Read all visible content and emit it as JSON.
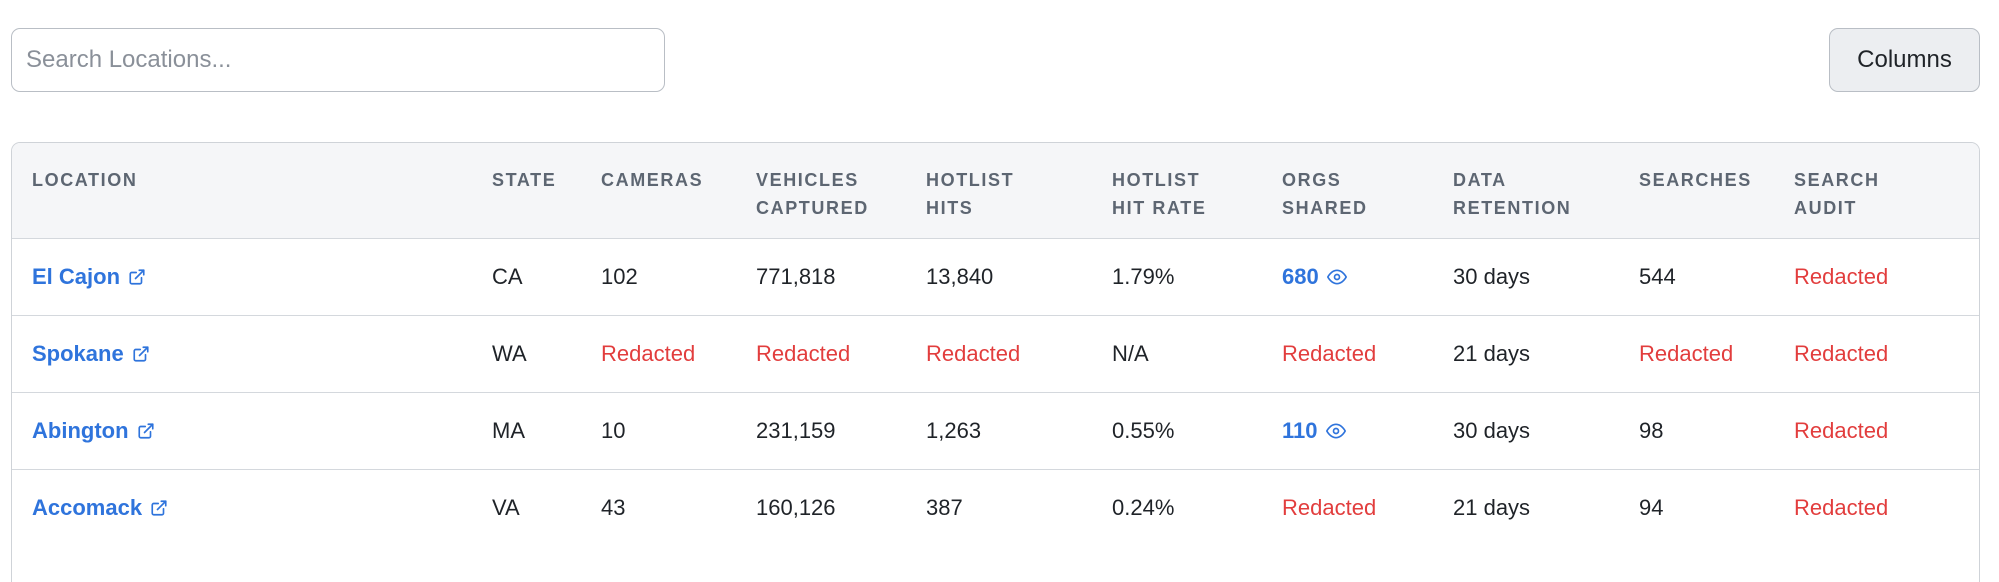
{
  "search": {
    "placeholder": "Search Locations...",
    "value": ""
  },
  "toolbar": {
    "columns_label": "Columns"
  },
  "colors": {
    "link": "#2f74dc",
    "redacted": "#e23d3d",
    "header_bg": "#f5f6f8"
  },
  "table": {
    "headers": [
      "LOCATION",
      "STATE",
      "CAMERAS",
      "VEHICLES\nCAPTURED",
      "HOTLIST\nHITS",
      "HOTLIST\nHIT RATE",
      "ORGS\nSHARED",
      "DATA\nRETENTION",
      "SEARCHES",
      "SEARCH\nAUDIT"
    ],
    "rows": [
      {
        "location": "El Cajon",
        "state": "CA",
        "cameras": "102",
        "vehicles_captured": "771,818",
        "hotlist_hits": "13,840",
        "hotlist_hit_rate": "1.79%",
        "orgs_shared": "680",
        "data_retention": "30 days",
        "searches": "544",
        "search_audit": "Redacted"
      },
      {
        "location": "Spokane",
        "state": "WA",
        "cameras": "Redacted",
        "vehicles_captured": "Redacted",
        "hotlist_hits": "Redacted",
        "hotlist_hit_rate": "N/A",
        "orgs_shared": "Redacted",
        "data_retention": "21 days",
        "searches": "Redacted",
        "search_audit": "Redacted"
      },
      {
        "location": "Abington",
        "state": "MA",
        "cameras": "10",
        "vehicles_captured": "231,159",
        "hotlist_hits": "1,263",
        "hotlist_hit_rate": "0.55%",
        "orgs_shared": "110",
        "data_retention": "30 days",
        "searches": "98",
        "search_audit": "Redacted"
      },
      {
        "location": "Accomack",
        "state": "VA",
        "cameras": "43",
        "vehicles_captured": "160,126",
        "hotlist_hits": "387",
        "hotlist_hit_rate": "0.24%",
        "orgs_shared": "Redacted",
        "data_retention": "21 days",
        "searches": "94",
        "search_audit": "Redacted"
      }
    ]
  }
}
